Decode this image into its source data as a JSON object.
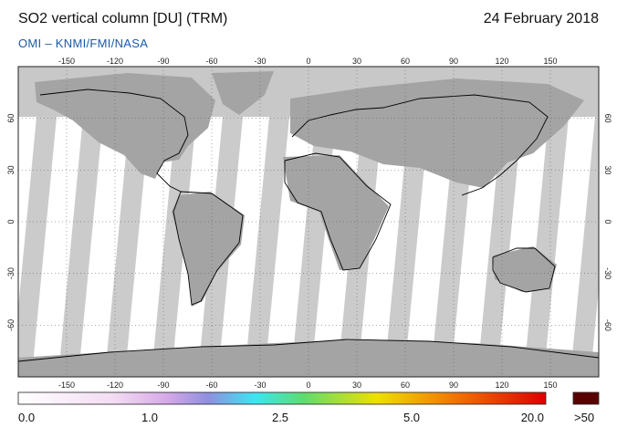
{
  "header": {
    "title": "SO2 vertical column [DU] (TRM)",
    "date": "24 February 2018",
    "credit": "OMI  –  KNMI/FMI/NASA"
  },
  "map": {
    "projection": "equirectangular",
    "lon_range": [
      -180,
      180
    ],
    "lat_range": [
      -90,
      90
    ],
    "lon_ticks": [
      "-150",
      "-120",
      "-90",
      "-60",
      "-30",
      "0",
      "30",
      "60",
      "90",
      "120",
      "150"
    ],
    "lat_ticks": [
      "60",
      "30",
      "0",
      "-30",
      "-60"
    ],
    "colors": {
      "no_data": "#c8c8c8",
      "land_mask": "#a4a4a4",
      "clean": "#ffffff",
      "coastline": "#000000"
    }
  },
  "colorbar": {
    "labels": [
      "0.0",
      "1.0",
      "2.5",
      "5.0",
      "20.0"
    ],
    "overflow_label": ">50",
    "overflow_color": "#5a0000",
    "stops": [
      "#ffffff",
      "#f0d8f0",
      "#d8a8e8",
      "#9090e0",
      "#40e8f0",
      "#60e070",
      "#f0e000",
      "#f07000",
      "#e00000"
    ]
  }
}
